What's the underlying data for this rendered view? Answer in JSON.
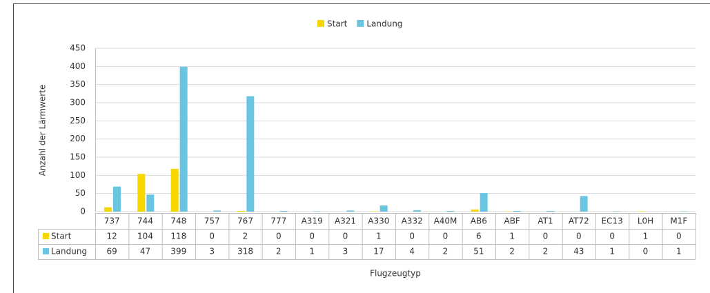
{
  "chart_data": {
    "type": "bar",
    "x_label": "Flugzeugtyp",
    "y_label": "Anzahl der Lärmwerte",
    "categories": [
      "737",
      "744",
      "748",
      "757",
      "767",
      "777",
      "A319",
      "A321",
      "A330",
      "A332",
      "A40M",
      "AB6",
      "ABF",
      "AT1",
      "AT72",
      "EC13",
      "L0H",
      "M1F"
    ],
    "series": [
      {
        "name": "Start",
        "color": "#f7d700",
        "values": [
          12,
          104,
          118,
          0,
          2,
          0,
          0,
          0,
          1,
          0,
          0,
          6,
          1,
          0,
          0,
          0,
          1,
          0
        ]
      },
      {
        "name": "Landung",
        "color": "#6ac6e0",
        "values": [
          69,
          47,
          399,
          3,
          318,
          2,
          1,
          3,
          17,
          4,
          2,
          51,
          2,
          2,
          43,
          1,
          0,
          1
        ]
      }
    ],
    "ylim": [
      0,
      450
    ],
    "yticks": [
      0,
      50,
      100,
      150,
      200,
      250,
      300,
      350,
      400,
      450
    ],
    "grid": true,
    "legend": "top"
  }
}
